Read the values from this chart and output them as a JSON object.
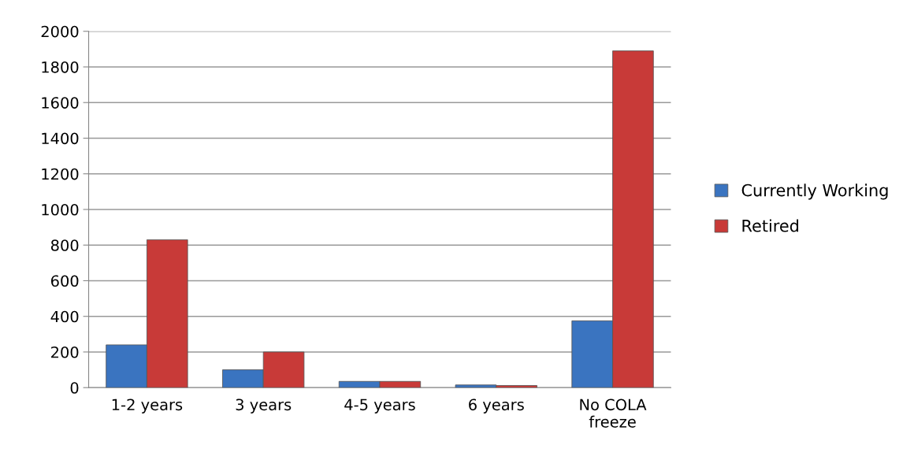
{
  "chart_data": {
    "type": "bar",
    "categories": [
      "1-2 years",
      "3 years",
      "4-5 years",
      "6 years",
      "No COLA\nfreeze"
    ],
    "series": [
      {
        "name": "Currently Working",
        "color": "#3a74c0",
        "values": [
          240,
          100,
          35,
          15,
          375
        ]
      },
      {
        "name": "Retired",
        "color": "#c83a38",
        "values": [
          830,
          200,
          35,
          12,
          1890
        ]
      }
    ],
    "ylim": [
      0,
      2000
    ],
    "yticks": [
      0,
      200,
      400,
      600,
      800,
      1000,
      1200,
      1400,
      1600,
      1800,
      2000
    ],
    "grid": "y",
    "legend": "right"
  }
}
